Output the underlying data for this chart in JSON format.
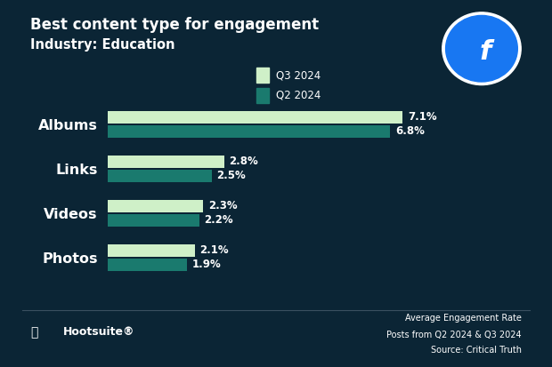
{
  "title_line1": "Best content type for engagement",
  "title_line2": "Industry: Education",
  "categories": [
    "Albums",
    "Links",
    "Videos",
    "Photos"
  ],
  "q3_values": [
    7.1,
    2.8,
    2.3,
    2.1
  ],
  "q2_values": [
    6.8,
    2.5,
    2.2,
    1.9
  ],
  "q3_labels": [
    "7.1%",
    "2.8%",
    "2.3%",
    "2.1%"
  ],
  "q2_labels": [
    "6.8%",
    "2.5%",
    "2.2%",
    "1.9%"
  ],
  "q3_color": "#cff0c8",
  "q2_color": "#1a7a6e",
  "background_color": "#0b2535",
  "text_color": "#ffffff",
  "legend_q3": "Q3 2024",
  "legend_q2": "Q2 2024",
  "footer_left": "Hootsuite®",
  "footer_right_line1": "Average Engagement Rate",
  "footer_right_line2": "Posts from Q2 2024 & Q3 2024",
  "footer_right_line3": "Source: Critical Truth",
  "bar_height": 0.28,
  "xlim": [
    0,
    8.5
  ],
  "label_fontsize": 8.5,
  "category_fontsize": 11.5,
  "title_fontsize1": 12,
  "title_fontsize2": 10.5,
  "legend_fontsize": 8.5
}
